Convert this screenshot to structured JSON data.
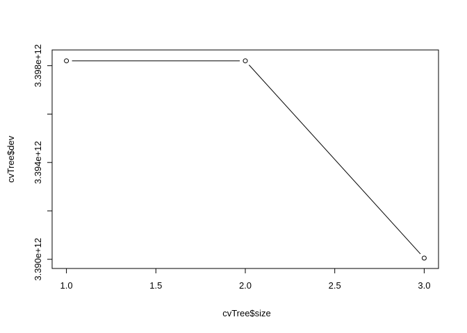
{
  "chart_data": {
    "type": "line",
    "title": "",
    "xlabel": "cvTree$size",
    "ylabel": "cvTree$dev",
    "x": [
      1.0,
      2.0,
      3.0
    ],
    "y": [
      3398200000000.0,
      3398200000000.0,
      3390050000000.0
    ],
    "xlim": [
      0.92,
      3.08
    ],
    "ylim": [
      3389620000000.0,
      3398650000000.0
    ],
    "x_ticks": [
      1.0,
      1.5,
      2.0,
      2.5,
      3.0
    ],
    "x_tick_labels": [
      "1.0",
      "1.5",
      "2.0",
      "2.5",
      "3.0"
    ],
    "y_ticks": [
      3390000000000.0,
      3392000000000.0,
      3394000000000.0,
      3396000000000.0,
      3398000000000.0
    ],
    "y_tick_labels": [
      "3.390e+12",
      "",
      "3.394e+12",
      "",
      "3.398e+12"
    ],
    "grid": false,
    "legend": "none",
    "marker": "open-circle",
    "line_color": "#000000"
  }
}
